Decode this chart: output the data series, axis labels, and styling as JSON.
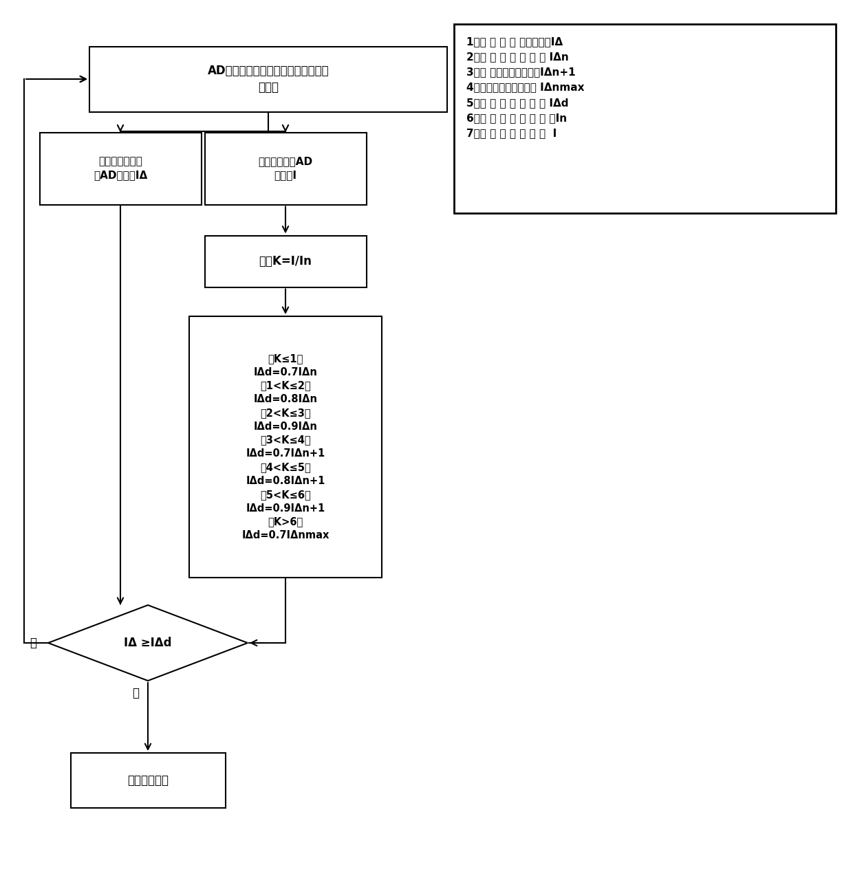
{
  "bg_color": "#ffffff",
  "line_color": "#000000",
  "text_color": "#000000",
  "box1_text": "AD采样，对线路中电流、剩余电流进\n行采样",
  "box2_text": "对剩余电流采样\n的AD，计算IΔ",
  "box3_text": "对电流采样的AD\n，计算I",
  "box4_text": "计算K=I/In",
  "box5_lines": [
    "（K≤1）",
    "IΔd=0.7IΔn",
    "（1<K≤2）",
    "IΔd=0.8IΔn",
    "（2<K≤3）",
    "IΔd=0.9IΔn",
    "（3<K≤4）",
    "IΔd=0.7IΔn+1",
    "（4<K≤5）",
    "IΔd=0.8IΔn+1",
    "（5<K≤6）",
    "IΔd=0.9IΔn+1",
    "（K>6）",
    "IΔd=0.7IΔnmax"
  ],
  "diamond_text": "IΔ ≥IΔd",
  "box6_text": "剩余电流动作",
  "legend_lines": [
    "1、线 路 中 实 际剩余电流IΔ",
    "2、剩 余 电 流 设 定 値 IΔn",
    "3、下 级剩余电流设定値IΔn+1",
    "4、剩余电流最大设定値 IΔnmax",
    "5、剩 余 电 流 动 作 値 IΔd",
    "6、断 路 器 的 额 定 电 流In",
    "7、线 路 中 实 际 电 流  I"
  ],
  "no_label": "否",
  "yes_label": "是"
}
